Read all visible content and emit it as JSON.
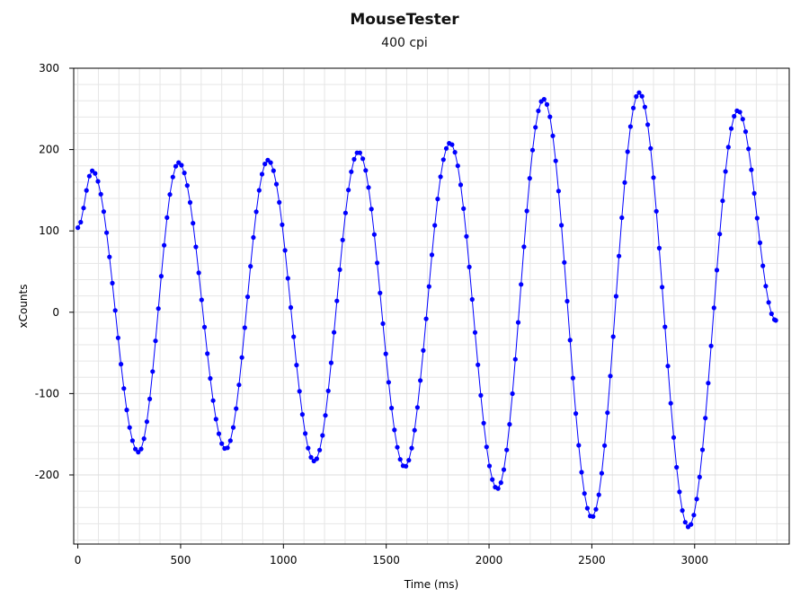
{
  "chart_data": {
    "type": "line",
    "title": "MouseTester",
    "subtitle": "400 cpi",
    "xlabel": "Time (ms)",
    "ylabel": "xCounts",
    "xlim": [
      -20,
      3460
    ],
    "ylim": [
      -285,
      300
    ],
    "x_ticks": [
      0,
      500,
      1000,
      1500,
      2000,
      2500,
      3000
    ],
    "y_ticks": [
      300,
      200,
      100,
      0,
      -100,
      -200
    ],
    "grid": true,
    "series": [
      {
        "color": "#0000ff",
        "marker": "circle",
        "sample_interval_ms": 14,
        "description": "oscillating x-count trace",
        "peaks": [
          [
            70,
            174
          ],
          [
            490,
            184
          ],
          [
            925,
            187
          ],
          [
            1365,
            197
          ],
          [
            1810,
            208
          ],
          [
            2265,
            262
          ],
          [
            2730,
            270
          ],
          [
            3210,
            248
          ]
        ],
        "troughs": [
          [
            0,
            104
          ],
          [
            295,
            -172
          ],
          [
            720,
            -168
          ],
          [
            1150,
            -183
          ],
          [
            1590,
            -190
          ],
          [
            2040,
            -217
          ],
          [
            2500,
            -252
          ],
          [
            2970,
            -264
          ],
          [
            3395,
            -10
          ]
        ]
      }
    ]
  },
  "colors": {
    "series": "#0000ff",
    "grid": "#e6e6e6",
    "axis": "#000000"
  }
}
